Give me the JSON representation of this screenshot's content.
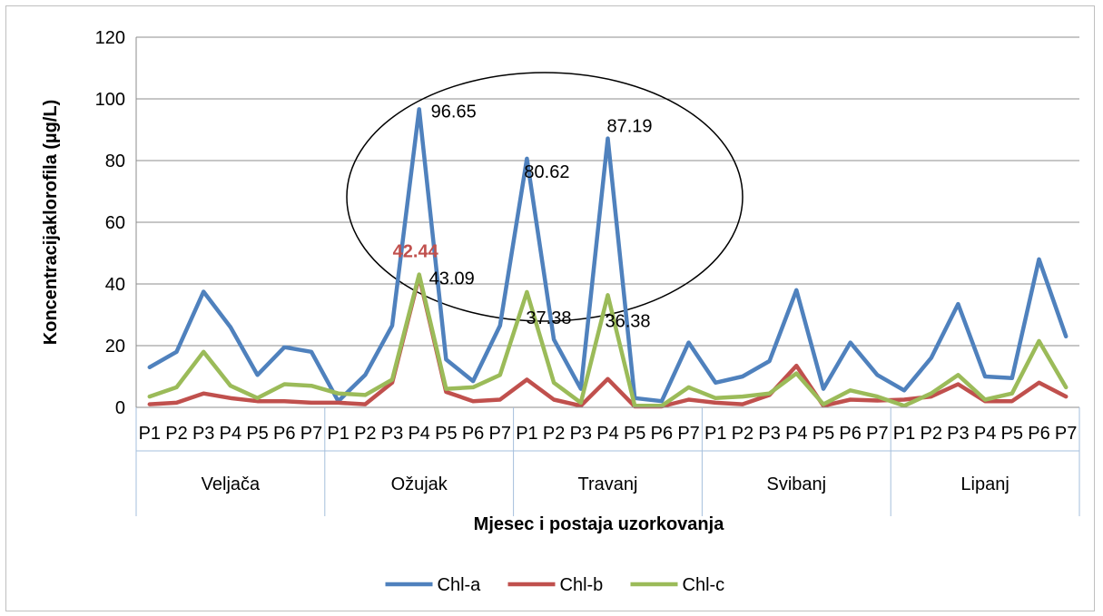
{
  "chart_data": {
    "type": "line",
    "title": "",
    "xlabel": "Mjesec i postaja uzorkovanja",
    "ylabel": "Koncentracijaklorofila (µg/L)",
    "ylim": [
      0,
      120
    ],
    "yticks": [
      0,
      20,
      40,
      60,
      80,
      100,
      120
    ],
    "grid": true,
    "legend": "bottom",
    "groups": [
      "Veljača",
      "Ožujak",
      "Travanj",
      "Svibanj",
      "Lipanj"
    ],
    "categories": [
      "P1",
      "P2",
      "P3",
      "P4",
      "P5",
      "P6",
      "P7",
      "P1",
      "P2",
      "P3",
      "P4",
      "P5",
      "P6",
      "P7",
      "P1",
      "P2",
      "P3",
      "P4",
      "P5",
      "P6",
      "P7",
      "P1",
      "P2",
      "P3",
      "P4",
      "P5",
      "P6",
      "P7",
      "P1",
      "P2",
      "P3",
      "P4",
      "P5",
      "P6",
      "P7"
    ],
    "series": [
      {
        "name": "Chl-a",
        "color": "#4F81BD",
        "values": [
          13,
          18,
          37.5,
          26,
          10.5,
          19.5,
          18,
          2,
          10.5,
          26.5,
          96.65,
          15.5,
          8.5,
          26.5,
          80.62,
          22,
          6,
          87.19,
          3,
          2,
          21,
          8,
          10,
          15,
          38,
          6,
          21,
          10.5,
          5.5,
          16,
          33.5,
          10,
          9.5,
          48,
          23
        ]
      },
      {
        "name": "Chl-b",
        "color": "#C0504D",
        "values": [
          1,
          1.5,
          4.5,
          3,
          2,
          2,
          1.5,
          1.5,
          1,
          8,
          42.44,
          5,
          2,
          2.5,
          9,
          2.5,
          0.5,
          9.2,
          0.3,
          0.3,
          2.5,
          1.5,
          1,
          4,
          13.5,
          0.5,
          2.5,
          2.2,
          2.5,
          3.5,
          7.5,
          2,
          2,
          8,
          3.5
        ]
      },
      {
        "name": "Chl-c",
        "color": "#9BBB59",
        "values": [
          3.5,
          6.5,
          18,
          7,
          3,
          7.5,
          7,
          4.5,
          4,
          9,
          43.09,
          6,
          6.5,
          10.5,
          37.38,
          8,
          1.5,
          36.38,
          0.5,
          0.5,
          6.5,
          3,
          3.5,
          4.5,
          11,
          1,
          5.5,
          3.5,
          0.5,
          4.5,
          10.5,
          2.5,
          4.5,
          21.5,
          6.5
        ]
      }
    ],
    "annotations": [
      {
        "text": "96.65",
        "x_index": 10,
        "y": 96.65,
        "color": "#000000"
      },
      {
        "text": "80.62",
        "x_index": 14,
        "y": 80.62,
        "color": "#000000"
      },
      {
        "text": "87.19",
        "x_index": 17,
        "y": 87.19,
        "color": "#000000"
      },
      {
        "text": "42.44",
        "x_index": 10,
        "y": 42.44,
        "color": "#C0504D"
      },
      {
        "text": "43.09",
        "x_index": 10,
        "y": 43.09,
        "color": "#000000"
      },
      {
        "text": "37.38",
        "x_index": 14,
        "y": 37.38,
        "color": "#000000"
      },
      {
        "text": "36.38",
        "x_index": 17,
        "y": 36.38,
        "color": "#000000"
      }
    ]
  }
}
